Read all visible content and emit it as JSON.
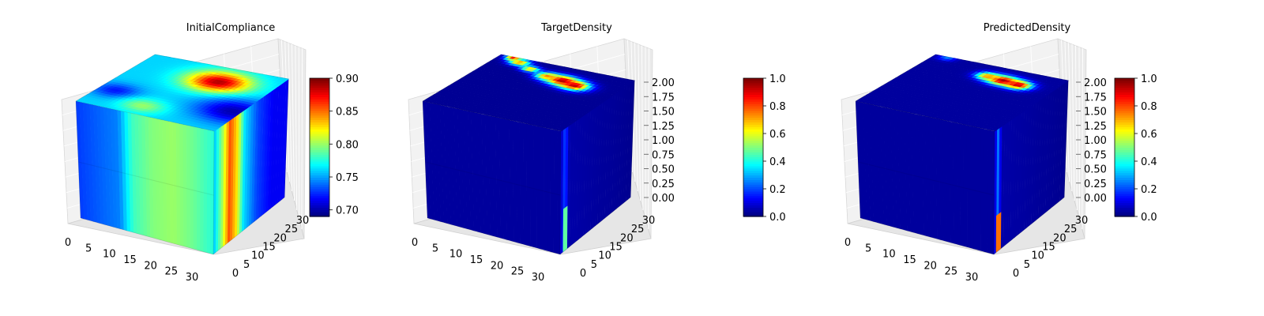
{
  "chart_data": [
    {
      "type": "voxel-3d",
      "title": "InitialCompliance",
      "x_ticks": [
        "0",
        "5",
        "10",
        "15",
        "20",
        "25",
        "30"
      ],
      "y_ticks": [
        "0",
        "5",
        "10",
        "15",
        "20",
        "25",
        "30"
      ],
      "z_ticks": [],
      "colorbar": {
        "ticks": [
          "0.70",
          "0.75",
          "0.80",
          "0.85",
          "0.90"
        ],
        "range": [
          0.69,
          0.9
        ]
      },
      "front_profile": [
        {
          "t": 0.0,
          "v": 0.73
        },
        {
          "t": 0.3,
          "v": 0.745
        },
        {
          "t": 0.4,
          "v": 0.785
        },
        {
          "t": 0.55,
          "v": 0.8
        },
        {
          "t": 0.7,
          "v": 0.805
        },
        {
          "t": 0.85,
          "v": 0.795
        },
        {
          "t": 1.0,
          "v": 0.78
        }
      ],
      "side_profile": [
        {
          "t": 0.0,
          "v": 0.77
        },
        {
          "t": 0.12,
          "v": 0.83
        },
        {
          "t": 0.22,
          "v": 0.9
        },
        {
          "t": 0.32,
          "v": 0.86
        },
        {
          "t": 0.42,
          "v": 0.78
        },
        {
          "t": 0.6,
          "v": 0.74
        },
        {
          "t": 0.8,
          "v": 0.72
        },
        {
          "t": 1.0,
          "v": 0.72
        }
      ],
      "top_base": 0.76,
      "top_blobs": [
        {
          "u": 0.62,
          "w": 0.75,
          "r": 0.22,
          "v": 0.89
        },
        {
          "u": 0.12,
          "w": 0.3,
          "r": 0.16,
          "v": 0.72
        },
        {
          "u": 0.95,
          "w": 0.35,
          "r": 0.25,
          "v": 0.7
        },
        {
          "u": 0.4,
          "w": 0.15,
          "r": 0.15,
          "v": 0.8
        }
      ]
    },
    {
      "type": "voxel-3d",
      "title": "TargetDensity",
      "x_ticks": [
        "0",
        "5",
        "10",
        "15",
        "20",
        "25",
        "30"
      ],
      "y_ticks": [
        "0",
        "5",
        "10",
        "15",
        "20",
        "25",
        "30"
      ],
      "z_ticks": [
        "0.00",
        "0.25",
        "0.50",
        "0.75",
        "1.00",
        "1.25",
        "1.50",
        "1.75",
        "2.00"
      ],
      "z_range": [
        0,
        2
      ],
      "colorbar": {
        "ticks": [
          "0.0",
          "0.2",
          "0.4",
          "0.6",
          "0.8",
          "1.0"
        ],
        "range": [
          0,
          1
        ]
      },
      "front_profile": [
        {
          "t": 0,
          "v": 0.03
        },
        {
          "t": 1,
          "v": 0.03
        }
      ],
      "side_profile": [
        {
          "t": 0.0,
          "v": 0.05
        },
        {
          "t": 0.06,
          "v": 0.25
        },
        {
          "t": 0.12,
          "v": 0.05
        },
        {
          "t": 1.0,
          "v": 0.02
        }
      ],
      "side_hot": {
        "t0": 0.04,
        "t1": 0.1,
        "z0": 0.0,
        "z1": 0.35,
        "v": 0.55
      },
      "top_base": 0.02,
      "top_blobs": [
        {
          "u": 0.58,
          "w": 0.78,
          "r": 0.1,
          "v": 1.0
        },
        {
          "u": 0.7,
          "w": 0.74,
          "r": 0.1,
          "v": 0.95
        },
        {
          "u": 0.46,
          "w": 0.8,
          "r": 0.08,
          "v": 0.75
        },
        {
          "u": 0.3,
          "w": 0.86,
          "r": 0.06,
          "v": 0.7
        },
        {
          "u": 0.18,
          "w": 0.93,
          "r": 0.07,
          "v": 0.75
        },
        {
          "u": 0.1,
          "w": 0.98,
          "r": 0.05,
          "v": 0.85
        }
      ]
    },
    {
      "type": "voxel-3d",
      "title": "PredictedDensity",
      "x_ticks": [
        "0",
        "5",
        "10",
        "15",
        "20",
        "25",
        "30"
      ],
      "y_ticks": [
        "0",
        "5",
        "10",
        "15",
        "20",
        "25",
        "30"
      ],
      "z_ticks": [
        "0.00",
        "0.25",
        "0.50",
        "0.75",
        "1.00",
        "1.25",
        "1.50",
        "1.75",
        "2.00"
      ],
      "z_range": [
        0,
        2
      ],
      "colorbar": {
        "ticks": [
          "0.0",
          "0.2",
          "0.4",
          "0.6",
          "0.8",
          "1.0"
        ],
        "range": [
          0,
          1
        ]
      },
      "front_profile": [
        {
          "t": 0,
          "v": 0.03
        },
        {
          "t": 1,
          "v": 0.03
        }
      ],
      "side_profile": [
        {
          "t": 0.0,
          "v": 0.04
        },
        {
          "t": 0.05,
          "v": 0.3
        },
        {
          "t": 0.1,
          "v": 0.05
        },
        {
          "t": 1.0,
          "v": 0.02
        }
      ],
      "side_hot": {
        "t0": 0.03,
        "t1": 0.1,
        "z0": 0.0,
        "z1": 0.3,
        "v": 0.9
      },
      "top_base": 0.03,
      "top_blobs": [
        {
          "u": 0.62,
          "w": 0.8,
          "r": 0.1,
          "v": 1.0
        },
        {
          "u": 0.75,
          "w": 0.78,
          "r": 0.09,
          "v": 0.95
        },
        {
          "u": 0.5,
          "w": 0.82,
          "r": 0.08,
          "v": 0.75
        },
        {
          "u": 0.1,
          "w": 0.98,
          "r": 0.06,
          "v": 0.25
        }
      ]
    }
  ],
  "colormap": "jet"
}
